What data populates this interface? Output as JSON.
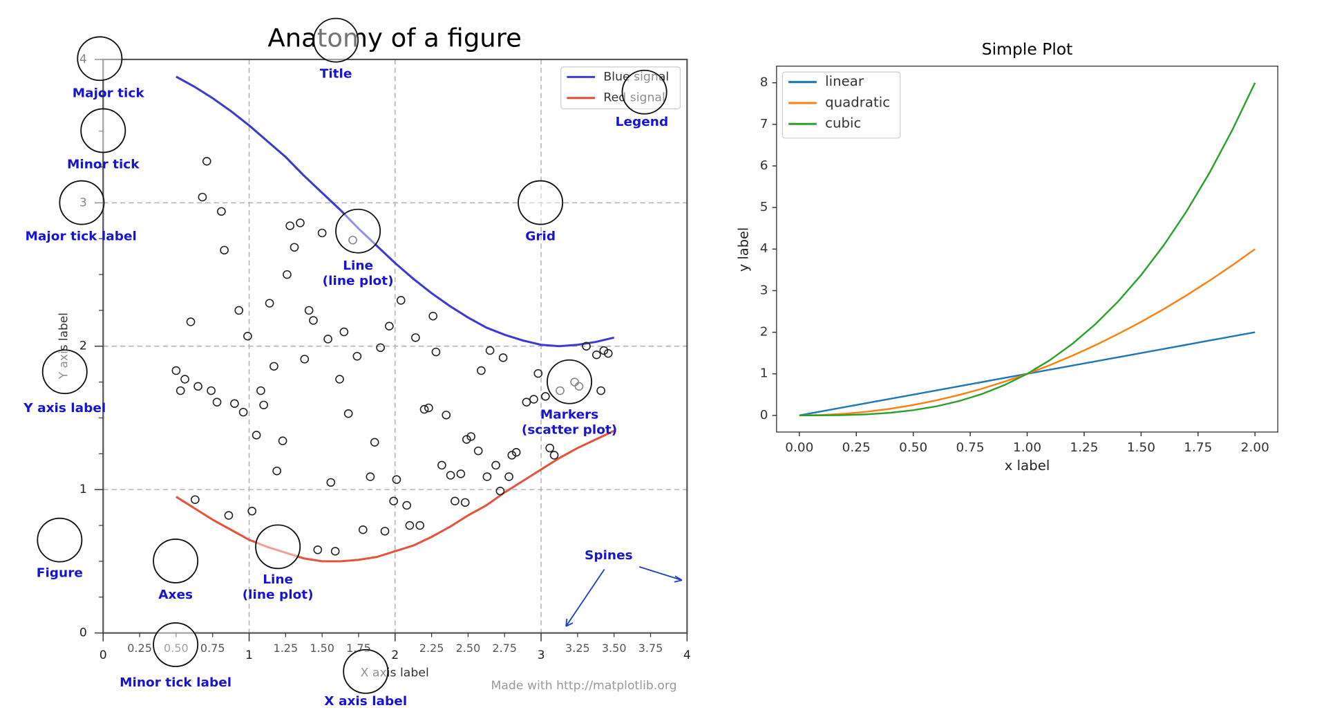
{
  "chart_data": [
    {
      "type": "line",
      "title": "Anatomy of a figure",
      "x": [
        0.5,
        0.625,
        0.75,
        0.875,
        1.0,
        1.125,
        1.25,
        1.375,
        1.5,
        1.625,
        1.75,
        1.875,
        2.0,
        2.125,
        2.25,
        2.375,
        2.5,
        2.625,
        2.75,
        2.875,
        3.0,
        3.125,
        3.25,
        3.375,
        3.5
      ],
      "series": [
        {
          "name": "Blue signal",
          "color": "#3b3bd4",
          "values": [
            3.88,
            3.81,
            3.73,
            3.64,
            3.54,
            3.43,
            3.32,
            3.19,
            3.07,
            2.95,
            2.82,
            2.7,
            2.58,
            2.47,
            2.37,
            2.28,
            2.2,
            2.13,
            2.08,
            2.04,
            2.01,
            2.0,
            2.01,
            2.03,
            2.06
          ]
        },
        {
          "name": "Red signal",
          "color": "#e5533d",
          "values": [
            0.95,
            0.87,
            0.79,
            0.72,
            0.65,
            0.6,
            0.56,
            0.52,
            0.5,
            0.5,
            0.51,
            0.53,
            0.57,
            0.61,
            0.67,
            0.74,
            0.82,
            0.89,
            0.98,
            1.06,
            1.14,
            1.22,
            1.29,
            1.35,
            1.41
          ]
        }
      ],
      "markers": {
        "color": "#222222",
        "x": [
          0.71,
          0.68,
          0.81,
          0.83,
          1.28,
          1.35,
          1.31,
          1.5,
          1.71,
          1.26,
          1.14,
          0.93,
          0.6,
          0.99,
          1.41,
          1.44,
          1.54,
          1.65,
          2.04,
          1.96,
          2.26,
          2.14,
          1.9,
          1.74,
          1.38,
          1.17,
          0.5,
          0.56,
          0.53,
          0.65,
          0.74,
          0.78,
          0.9,
          0.96,
          1.08,
          1.1,
          1.05,
          1.23,
          1.19,
          1.62,
          1.68,
          1.86,
          1.83,
          1.56,
          2.01,
          1.99,
          2.08,
          2.1,
          2.17,
          1.78,
          1.93,
          1.47,
          1.59,
          0.63,
          0.86,
          1.02,
          2.2,
          2.23,
          2.35,
          2.28,
          2.49,
          2.52,
          2.57,
          2.32,
          2.38,
          2.45,
          2.41,
          2.48,
          2.63,
          2.69,
          2.72,
          2.78,
          2.8,
          2.83,
          2.59,
          2.65,
          2.74,
          2.98,
          2.95,
          2.9,
          3.03,
          3.13,
          3.23,
          3.26,
          3.41,
          3.31,
          3.38,
          3.43,
          3.46,
          3.06,
          3.09
        ],
        "y": [
          3.29,
          3.04,
          2.94,
          2.67,
          2.84,
          2.86,
          2.69,
          2.79,
          2.74,
          2.5,
          2.3,
          2.25,
          2.17,
          2.07,
          2.25,
          2.18,
          2.05,
          2.1,
          2.32,
          2.14,
          2.21,
          2.06,
          1.99,
          1.93,
          1.91,
          1.86,
          1.83,
          1.77,
          1.69,
          1.72,
          1.69,
          1.61,
          1.6,
          1.54,
          1.69,
          1.59,
          1.38,
          1.34,
          1.13,
          1.77,
          1.53,
          1.33,
          1.09,
          1.05,
          1.07,
          0.92,
          0.89,
          0.75,
          0.75,
          0.72,
          0.71,
          0.58,
          0.57,
          0.93,
          0.82,
          0.85,
          1.56,
          1.57,
          1.52,
          1.96,
          1.35,
          1.37,
          1.27,
          1.17,
          1.1,
          1.11,
          0.92,
          0.91,
          1.09,
          1.17,
          0.99,
          1.09,
          1.24,
          1.26,
          1.83,
          1.97,
          1.92,
          1.81,
          1.63,
          1.61,
          1.65,
          1.69,
          1.75,
          1.72,
          1.69,
          2.0,
          1.94,
          1.97,
          1.95,
          1.29,
          1.24
        ]
      },
      "xlim": [
        0,
        4
      ],
      "ylim": [
        0,
        4
      ],
      "xticks": [
        0,
        1,
        2,
        3,
        4
      ],
      "yticks": [
        0,
        1,
        2,
        3,
        4
      ],
      "xticks_minor": [
        0.25,
        {
          "value": 0.5,
          "label": "0.50"
        },
        0.75,
        1.25,
        {
          "value": 1.5,
          "label": "1.50"
        },
        1.75,
        2.25,
        {
          "value": 2.5,
          "label": "2.50"
        },
        2.75,
        3.25,
        {
          "value": 3.5,
          "label": "3.50"
        },
        3.75
      ],
      "yticks_minor": [
        0.25,
        0.5,
        0.75,
        1.25,
        1.5,
        1.75,
        2.25,
        2.5,
        2.75,
        3.25,
        3.5,
        3.75
      ],
      "xlabel": "X axis label",
      "ylabel": "Y axis label",
      "grid": true,
      "legend": "upper right",
      "annotations": [
        {
          "lines": [
            "Major tick"
          ]
        },
        {
          "lines": [
            "Minor tick"
          ]
        },
        {
          "lines": [
            "Major tick label"
          ]
        },
        {
          "lines": [
            "Y axis label"
          ]
        },
        {
          "lines": [
            "Figure"
          ]
        },
        {
          "lines": [
            "Axes"
          ]
        },
        {
          "lines": [
            "Line",
            "(line plot)"
          ]
        },
        {
          "lines": [
            "Minor tick label"
          ]
        },
        {
          "lines": [
            "X axis label"
          ]
        },
        {
          "lines": [
            "Title"
          ]
        },
        {
          "lines": [
            "Legend"
          ]
        },
        {
          "lines": [
            "Grid"
          ]
        },
        {
          "lines": [
            "Line",
            "(line plot)"
          ]
        },
        {
          "lines": [
            "Markers",
            "(scatter plot)"
          ]
        },
        {
          "lines": [
            "Spines"
          ]
        }
      ],
      "credit": "Made with http://matplotlib.org"
    },
    {
      "type": "line",
      "title": "Simple Plot",
      "x": [
        0,
        0.1,
        0.2,
        0.3,
        0.4,
        0.5,
        0.6,
        0.7,
        0.8,
        0.9,
        1.0,
        1.1,
        1.2,
        1.3,
        1.4,
        1.5,
        1.6,
        1.7,
        1.8,
        1.9,
        2.0
      ],
      "series": [
        {
          "name": "linear",
          "color": "#1f77b4",
          "values": [
            0,
            0.1,
            0.2,
            0.3,
            0.4,
            0.5,
            0.6,
            0.7,
            0.8,
            0.9,
            1.0,
            1.1,
            1.2,
            1.3,
            1.4,
            1.5,
            1.6,
            1.7,
            1.8,
            1.9,
            2.0
          ]
        },
        {
          "name": "quadratic",
          "color": "#ff7f0e",
          "values": [
            0,
            0.01,
            0.04,
            0.09,
            0.16,
            0.25,
            0.36,
            0.49,
            0.64,
            0.81,
            1,
            1.21,
            1.44,
            1.69,
            1.96,
            2.25,
            2.56,
            2.89,
            3.24,
            3.61,
            4
          ]
        },
        {
          "name": "cubic",
          "color": "#2ca02c",
          "values": [
            0,
            0.001,
            0.008,
            0.027,
            0.064,
            0.125,
            0.216,
            0.343,
            0.512,
            0.729,
            1,
            1.331,
            1.728,
            2.197,
            2.744,
            3.375,
            4.096,
            4.913,
            5.832,
            6.859,
            8
          ]
        }
      ],
      "xlim": [
        -0.1,
        2.1
      ],
      "ylim": [
        -0.4,
        8.4
      ],
      "xticks": [
        {
          "value": 0,
          "label": "0.00"
        },
        0.25,
        {
          "value": 0.5,
          "label": "0.50"
        },
        0.75,
        {
          "value": 1,
          "label": "1.00"
        },
        1.25,
        {
          "value": 1.5,
          "label": "1.50"
        },
        1.75,
        {
          "value": 2,
          "label": "2.00"
        }
      ],
      "yticks": [
        0,
        1,
        2,
        3,
        4,
        5,
        6,
        7,
        8
      ],
      "xlabel": "x label",
      "ylabel": "y label",
      "grid": false,
      "legend": "upper left"
    }
  ]
}
